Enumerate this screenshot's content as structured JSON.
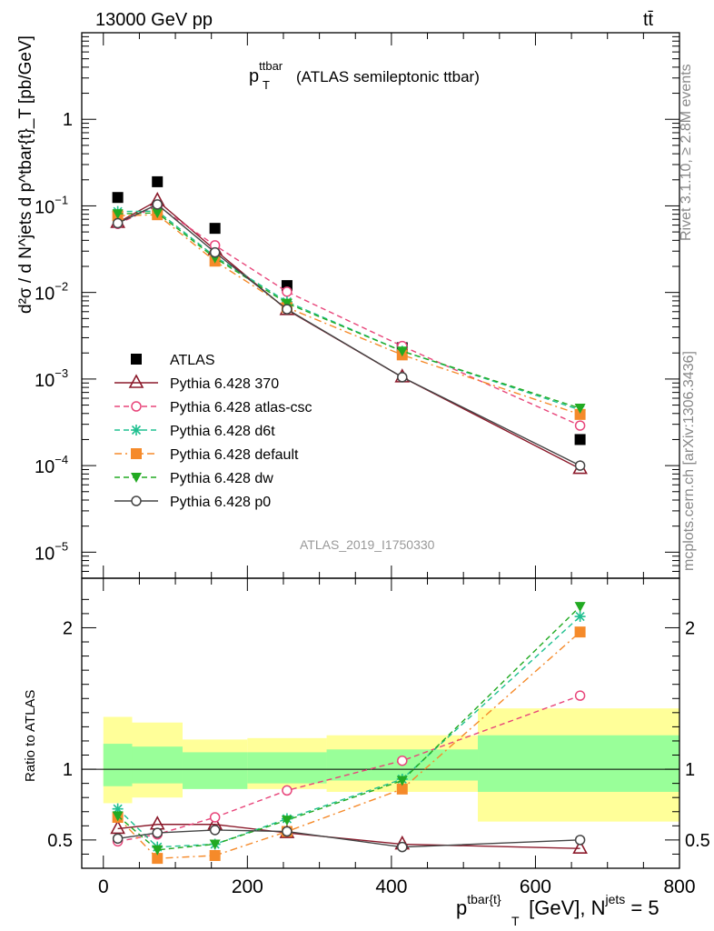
{
  "header": {
    "left": "13000 GeV pp",
    "right": "tt̄"
  },
  "side_labels": {
    "rivet": "Rivet 3.1.10, ≥ 2.8M events",
    "mcplots": "mcplots.cern.ch [arXiv:1306.3436]"
  },
  "chart_data": [
    {
      "type": "scatter",
      "panel": "main",
      "title": {
        "main": "p",
        "sup": "ttbar",
        "sub": "T",
        "rest": "(ATLAS semileptonic ttbar)"
      },
      "ylabel": "d²σ / d N^jets d p^tbar{t}_T [pb/GeV]",
      "yscale": "log",
      "ylim": [
        5e-06,
        10
      ],
      "xlim": [
        -30,
        800
      ],
      "y_ticks": [
        {
          "value": 1,
          "mant": "1",
          "exp": ""
        },
        {
          "value": 0.1,
          "mant": "10",
          "exp": "−1"
        },
        {
          "value": 0.01,
          "mant": "10",
          "exp": "−2"
        },
        {
          "value": 0.001,
          "mant": "10",
          "exp": "−3"
        },
        {
          "value": 0.0001,
          "mant": "10",
          "exp": "−4"
        },
        {
          "value": 1e-05,
          "mant": "10",
          "exp": "−5"
        }
      ],
      "watermark": "ATLAS_2019_I1750330",
      "legend_position": "bottom-left",
      "x": [
        20,
        75,
        155,
        255,
        415,
        662
      ],
      "series": [
        {
          "name": "ATLAS",
          "color": "#000000",
          "marker": "square",
          "dash": "none",
          "values": [
            0.125,
            0.19,
            0.055,
            0.012,
            0.0023,
            0.0002
          ]
        },
        {
          "name": "Pythia 6.428 370",
          "color": "#8b1a2b",
          "marker": "triangle-open",
          "dash": "solid",
          "values": [
            0.064,
            0.115,
            0.031,
            0.0063,
            0.00105,
            9.2e-05
          ]
        },
        {
          "name": "Pythia 6.428 atlas-csc",
          "color": "#e8457a",
          "marker": "circle-open",
          "dash": "dashed",
          "values": [
            0.062,
            0.1,
            0.035,
            0.0102,
            0.0024,
            0.00029
          ]
        },
        {
          "name": "Pythia 6.428 d6t",
          "color": "#20c090",
          "marker": "star",
          "dash": "dashed",
          "values": [
            0.086,
            0.087,
            0.026,
            0.0078,
            0.0021,
            0.00044
          ]
        },
        {
          "name": "Pythia 6.428 default",
          "color": "#f58a2a",
          "marker": "square",
          "dash": "dashdot",
          "values": [
            0.077,
            0.079,
            0.023,
            0.0067,
            0.0019,
            0.00039
          ]
        },
        {
          "name": "Pythia 6.428 dw",
          "color": "#22aa22",
          "marker": "triangle-down",
          "dash": "dashed",
          "values": [
            0.081,
            0.083,
            0.025,
            0.0075,
            0.0021,
            0.00046
          ]
        },
        {
          "name": "Pythia 6.428 p0",
          "color": "#444444",
          "marker": "circle-open",
          "dash": "solid",
          "values": [
            0.063,
            0.104,
            0.029,
            0.0064,
            0.00105,
            0.0001
          ]
        }
      ]
    },
    {
      "type": "scatter",
      "panel": "ratio",
      "ylabel": "Ratio to ATLAS",
      "xlabel": {
        "base": "p",
        "sup": "tbar{t}",
        "sub": "T",
        "rest": " [GeV], N",
        "sup2": "jets",
        "rest2": " = 5"
      },
      "ylim": [
        0.3,
        2.35
      ],
      "xlim": [
        -30,
        800
      ],
      "x_ticks": [
        0,
        200,
        400,
        600,
        800
      ],
      "y_ticks": [
        0.5,
        1,
        2
      ],
      "bands": [
        {
          "x0": 0,
          "x1": 40,
          "inner": [
            0.88,
            1.18
          ],
          "outer": [
            0.76,
            1.37
          ]
        },
        {
          "x0": 40,
          "x1": 110,
          "inner": [
            0.9,
            1.16
          ],
          "outer": [
            0.8,
            1.33
          ]
        },
        {
          "x0": 110,
          "x1": 200,
          "inner": [
            0.86,
            1.12
          ],
          "outer": [
            0.87,
            1.21
          ]
        },
        {
          "x0": 200,
          "x1": 310,
          "inner": [
            0.9,
            1.12
          ],
          "outer": [
            0.86,
            1.22
          ]
        },
        {
          "x0": 310,
          "x1": 520,
          "inner": [
            0.92,
            1.14
          ],
          "outer": [
            0.84,
            1.24
          ]
        },
        {
          "x0": 520,
          "x1": 800,
          "inner": [
            0.84,
            1.24
          ],
          "outer": [
            0.63,
            1.43
          ]
        }
      ],
      "series": [
        {
          "name": "Pythia 6.428 370",
          "values": [
            0.58,
            0.61,
            0.61,
            0.55,
            0.47,
            0.44
          ]
        },
        {
          "name": "Pythia 6.428 atlas-csc",
          "values": [
            0.49,
            0.54,
            0.66,
            0.85,
            1.06,
            1.52
          ]
        },
        {
          "name": "Pythia 6.428 d6t",
          "values": [
            0.72,
            0.45,
            0.47,
            0.65,
            0.93,
            2.08
          ]
        },
        {
          "name": "Pythia 6.428 default",
          "values": [
            0.66,
            0.37,
            0.39,
            0.56,
            0.86,
            1.97
          ]
        },
        {
          "name": "Pythia 6.428 dw",
          "values": [
            0.67,
            0.43,
            0.47,
            0.64,
            0.92,
            2.15
          ]
        },
        {
          "name": "Pythia 6.428 p0",
          "values": [
            0.51,
            0.55,
            0.57,
            0.56,
            0.45,
            0.5
          ]
        }
      ]
    }
  ]
}
